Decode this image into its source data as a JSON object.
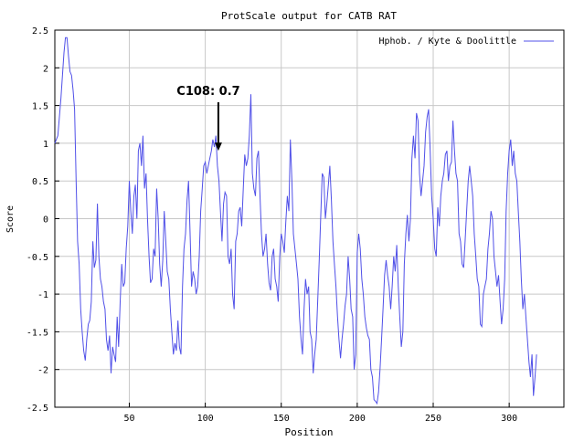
{
  "chart_data": {
    "type": "line",
    "title": "ProtScale output for CATB RAT",
    "xlabel": "Position",
    "ylabel": "Score",
    "xlim": [
      1,
      336
    ],
    "ylim": [
      -2.5,
      2.5
    ],
    "grid": true,
    "legend_position": "top-right",
    "x_ticks": [
      50,
      100,
      150,
      200,
      250,
      300
    ],
    "y_ticks": [
      -2.5,
      -2,
      -1.5,
      -1,
      -0.5,
      0,
      0.5,
      1,
      1.5,
      2,
      2.5
    ],
    "x_tick_labels": [
      "50",
      "100",
      "150",
      "200",
      "250",
      "300"
    ],
    "y_tick_labels": [
      "-2.5",
      "-2",
      "-1.5",
      "-1",
      "-0.5",
      "0",
      "0.5",
      "1",
      "1.5",
      "2",
      "2.5"
    ],
    "series": [
      {
        "name": "Hphob. / Kyte & Doolittle",
        "color": "#5050e8",
        "points": [
          [
            1,
            1.0
          ],
          [
            3,
            1.1
          ],
          [
            5,
            1.6
          ],
          [
            7,
            2.2
          ],
          [
            8,
            2.4
          ],
          [
            9,
            2.4
          ],
          [
            10,
            2.15
          ],
          [
            11,
            1.95
          ],
          [
            12,
            1.9
          ],
          [
            13,
            1.7
          ],
          [
            14,
            1.45
          ],
          [
            15,
            0.5
          ],
          [
            16,
            -0.3
          ],
          [
            17,
            -0.6
          ],
          [
            18,
            -1.2
          ],
          [
            19,
            -1.5
          ],
          [
            20,
            -1.75
          ],
          [
            21,
            -1.88
          ],
          [
            22,
            -1.6
          ],
          [
            23,
            -1.4
          ],
          [
            24,
            -1.35
          ],
          [
            25,
            -1.1
          ],
          [
            26,
            -0.3
          ],
          [
            27,
            -0.65
          ],
          [
            28,
            -0.55
          ],
          [
            29,
            0.2
          ],
          [
            30,
            -0.5
          ],
          [
            31,
            -0.8
          ],
          [
            32,
            -0.9
          ],
          [
            33,
            -1.1
          ],
          [
            34,
            -1.2
          ],
          [
            35,
            -1.6
          ],
          [
            36,
            -1.75
          ],
          [
            37,
            -1.55
          ],
          [
            38,
            -2.05
          ],
          [
            39,
            -1.7
          ],
          [
            40,
            -1.8
          ],
          [
            41,
            -1.9
          ],
          [
            42,
            -1.3
          ],
          [
            43,
            -1.7
          ],
          [
            44,
            -1.1
          ],
          [
            45,
            -0.6
          ],
          [
            46,
            -0.9
          ],
          [
            47,
            -0.85
          ],
          [
            48,
            -0.4
          ],
          [
            49,
            -0.1
          ],
          [
            50,
            0.5
          ],
          [
            51,
            0.1
          ],
          [
            52,
            -0.2
          ],
          [
            53,
            0.3
          ],
          [
            54,
            0.45
          ],
          [
            55,
            0.0
          ],
          [
            56,
            0.9
          ],
          [
            57,
            1.0
          ],
          [
            58,
            0.7
          ],
          [
            59,
            1.1
          ],
          [
            60,
            0.4
          ],
          [
            61,
            0.6
          ],
          [
            62,
            0.0
          ],
          [
            63,
            -0.5
          ],
          [
            64,
            -0.85
          ],
          [
            65,
            -0.8
          ],
          [
            66,
            -0.4
          ],
          [
            67,
            -0.5
          ],
          [
            68,
            0.4
          ],
          [
            69,
            0.0
          ],
          [
            70,
            -0.6
          ],
          [
            71,
            -0.9
          ],
          [
            72,
            -0.55
          ],
          [
            73,
            0.1
          ],
          [
            74,
            -0.3
          ],
          [
            75,
            -0.7
          ],
          [
            76,
            -0.8
          ],
          [
            77,
            -1.2
          ],
          [
            78,
            -1.5
          ],
          [
            79,
            -1.8
          ],
          [
            80,
            -1.65
          ],
          [
            81,
            -1.75
          ],
          [
            82,
            -1.35
          ],
          [
            83,
            -1.7
          ],
          [
            84,
            -1.8
          ],
          [
            85,
            -0.9
          ],
          [
            86,
            -0.4
          ],
          [
            87,
            -0.2
          ],
          [
            88,
            0.25
          ],
          [
            89,
            0.5
          ],
          [
            90,
            -0.2
          ],
          [
            91,
            -0.9
          ],
          [
            92,
            -0.7
          ],
          [
            93,
            -0.8
          ],
          [
            94,
            -1.0
          ],
          [
            95,
            -0.9
          ],
          [
            96,
            -0.5
          ],
          [
            97,
            0.1
          ],
          [
            98,
            0.4
          ],
          [
            99,
            0.7
          ],
          [
            100,
            0.75
          ],
          [
            101,
            0.6
          ],
          [
            102,
            0.7
          ],
          [
            103,
            0.8
          ],
          [
            104,
            0.9
          ],
          [
            105,
            1.05
          ],
          [
            106,
            0.95
          ],
          [
            107,
            1.1
          ],
          [
            108,
            0.7
          ],
          [
            109,
            0.5
          ],
          [
            110,
            0.1
          ],
          [
            111,
            -0.3
          ],
          [
            112,
            0.2
          ],
          [
            113,
            0.35
          ],
          [
            114,
            0.3
          ],
          [
            115,
            -0.5
          ],
          [
            116,
            -0.6
          ],
          [
            117,
            -0.4
          ],
          [
            118,
            -1.0
          ],
          [
            119,
            -1.2
          ],
          [
            120,
            -0.3
          ],
          [
            121,
            -0.2
          ],
          [
            122,
            0.1
          ],
          [
            123,
            0.15
          ],
          [
            124,
            -0.1
          ],
          [
            125,
            0.4
          ],
          [
            126,
            0.85
          ],
          [
            127,
            0.7
          ],
          [
            128,
            0.8
          ],
          [
            129,
            1.1
          ],
          [
            130,
            1.65
          ],
          [
            131,
            0.6
          ],
          [
            132,
            0.4
          ],
          [
            133,
            0.3
          ],
          [
            134,
            0.8
          ],
          [
            135,
            0.9
          ],
          [
            136,
            0.3
          ],
          [
            137,
            -0.2
          ],
          [
            138,
            -0.5
          ],
          [
            139,
            -0.4
          ],
          [
            140,
            -0.2
          ],
          [
            141,
            -0.6
          ],
          [
            142,
            -0.85
          ],
          [
            143,
            -0.95
          ],
          [
            144,
            -0.5
          ],
          [
            145,
            -0.4
          ],
          [
            146,
            -0.8
          ],
          [
            147,
            -0.9
          ],
          [
            148,
            -1.1
          ],
          [
            149,
            -0.5
          ],
          [
            150,
            -0.2
          ],
          [
            151,
            -0.3
          ],
          [
            152,
            -0.45
          ],
          [
            153,
            -0.05
          ],
          [
            154,
            0.3
          ],
          [
            155,
            0.1
          ],
          [
            156,
            1.05
          ],
          [
            157,
            0.5
          ],
          [
            158,
            -0.2
          ],
          [
            159,
            -0.4
          ],
          [
            160,
            -0.6
          ],
          [
            161,
            -0.8
          ],
          [
            162,
            -1.3
          ],
          [
            163,
            -1.6
          ],
          [
            164,
            -1.8
          ],
          [
            165,
            -1.2
          ],
          [
            166,
            -0.8
          ],
          [
            167,
            -1.0
          ],
          [
            168,
            -0.9
          ],
          [
            169,
            -1.5
          ],
          [
            170,
            -1.6
          ],
          [
            171,
            -2.05
          ],
          [
            172,
            -1.8
          ],
          [
            173,
            -1.6
          ],
          [
            174,
            -1.1
          ],
          [
            175,
            -0.55
          ],
          [
            176,
            0.05
          ],
          [
            177,
            0.6
          ],
          [
            178,
            0.55
          ],
          [
            179,
            0.0
          ],
          [
            180,
            0.2
          ],
          [
            181,
            0.45
          ],
          [
            182,
            0.7
          ],
          [
            183,
            0.25
          ],
          [
            184,
            -0.3
          ],
          [
            185,
            -0.6
          ],
          [
            186,
            -0.9
          ],
          [
            187,
            -1.3
          ],
          [
            188,
            -1.6
          ],
          [
            189,
            -1.85
          ],
          [
            190,
            -1.6
          ],
          [
            191,
            -1.4
          ],
          [
            192,
            -1.15
          ],
          [
            193,
            -1.0
          ],
          [
            194,
            -0.5
          ],
          [
            195,
            -0.8
          ],
          [
            196,
            -1.2
          ],
          [
            197,
            -1.3
          ],
          [
            198,
            -2.0
          ],
          [
            199,
            -1.8
          ],
          [
            200,
            -0.45
          ],
          [
            201,
            -0.2
          ],
          [
            202,
            -0.4
          ],
          [
            203,
            -0.8
          ],
          [
            204,
            -1.0
          ],
          [
            205,
            -1.3
          ],
          [
            206,
            -1.45
          ],
          [
            207,
            -1.55
          ],
          [
            208,
            -1.6
          ],
          [
            209,
            -2.0
          ],
          [
            210,
            -2.1
          ],
          [
            211,
            -2.4
          ],
          [
            212,
            -2.42
          ],
          [
            213,
            -2.45
          ],
          [
            214,
            -2.3
          ],
          [
            215,
            -2.0
          ],
          [
            216,
            -1.6
          ],
          [
            217,
            -1.2
          ],
          [
            218,
            -0.75
          ],
          [
            219,
            -0.55
          ],
          [
            220,
            -0.75
          ],
          [
            221,
            -0.9
          ],
          [
            222,
            -1.2
          ],
          [
            223,
            -0.9
          ],
          [
            224,
            -0.5
          ],
          [
            225,
            -0.7
          ],
          [
            226,
            -0.35
          ],
          [
            227,
            -0.9
          ],
          [
            228,
            -1.3
          ],
          [
            229,
            -1.7
          ],
          [
            230,
            -1.5
          ],
          [
            231,
            -0.6
          ],
          [
            232,
            -0.2
          ],
          [
            233,
            0.05
          ],
          [
            234,
            -0.3
          ],
          [
            235,
            0.0
          ],
          [
            236,
            0.8
          ],
          [
            237,
            1.1
          ],
          [
            238,
            0.8
          ],
          [
            239,
            1.4
          ],
          [
            240,
            1.3
          ],
          [
            241,
            0.6
          ],
          [
            242,
            0.3
          ],
          [
            243,
            0.5
          ],
          [
            244,
            0.7
          ],
          [
            245,
            1.15
          ],
          [
            246,
            1.35
          ],
          [
            247,
            1.45
          ],
          [
            248,
            0.9
          ],
          [
            249,
            0.3
          ],
          [
            250,
            0.0
          ],
          [
            251,
            -0.4
          ],
          [
            252,
            -0.5
          ],
          [
            253,
            0.15
          ],
          [
            254,
            -0.1
          ],
          [
            255,
            0.3
          ],
          [
            256,
            0.5
          ],
          [
            257,
            0.6
          ],
          [
            258,
            0.85
          ],
          [
            259,
            0.9
          ],
          [
            260,
            0.5
          ],
          [
            261,
            0.7
          ],
          [
            262,
            0.75
          ],
          [
            263,
            1.3
          ],
          [
            264,
            0.9
          ],
          [
            265,
            0.6
          ],
          [
            266,
            0.5
          ],
          [
            267,
            -0.2
          ],
          [
            268,
            -0.3
          ],
          [
            269,
            -0.6
          ],
          [
            270,
            -0.65
          ],
          [
            271,
            -0.3
          ],
          [
            272,
            0.1
          ],
          [
            273,
            0.5
          ],
          [
            274,
            0.7
          ],
          [
            275,
            0.5
          ],
          [
            276,
            0.3
          ],
          [
            277,
            -0.2
          ],
          [
            278,
            -0.5
          ],
          [
            279,
            -0.8
          ],
          [
            280,
            -0.9
          ],
          [
            281,
            -1.4
          ],
          [
            282,
            -1.43
          ],
          [
            283,
            -1.0
          ],
          [
            284,
            -0.9
          ],
          [
            285,
            -0.8
          ],
          [
            286,
            -0.4
          ],
          [
            287,
            -0.2
          ],
          [
            288,
            0.1
          ],
          [
            289,
            0.0
          ],
          [
            290,
            -0.5
          ],
          [
            291,
            -0.7
          ],
          [
            292,
            -0.9
          ],
          [
            293,
            -0.75
          ],
          [
            294,
            -1.1
          ],
          [
            295,
            -1.4
          ],
          [
            296,
            -1.2
          ],
          [
            297,
            -0.8
          ],
          [
            298,
            0.1
          ],
          [
            299,
            0.6
          ],
          [
            300,
            0.9
          ],
          [
            301,
            1.05
          ],
          [
            302,
            0.7
          ],
          [
            303,
            0.9
          ],
          [
            304,
            0.6
          ],
          [
            305,
            0.5
          ],
          [
            306,
            0.1
          ],
          [
            307,
            -0.3
          ],
          [
            308,
            -0.8
          ],
          [
            309,
            -1.2
          ],
          [
            310,
            -1.0
          ],
          [
            311,
            -1.3
          ],
          [
            312,
            -1.6
          ],
          [
            313,
            -1.9
          ],
          [
            314,
            -2.1
          ],
          [
            315,
            -1.8
          ],
          [
            316,
            -2.35
          ],
          [
            317,
            -2.1
          ],
          [
            318,
            -1.8
          ]
        ]
      }
    ],
    "annotation": {
      "text": "C108: 0.7",
      "x": 108,
      "y": 0.9,
      "color": "#000000"
    }
  }
}
